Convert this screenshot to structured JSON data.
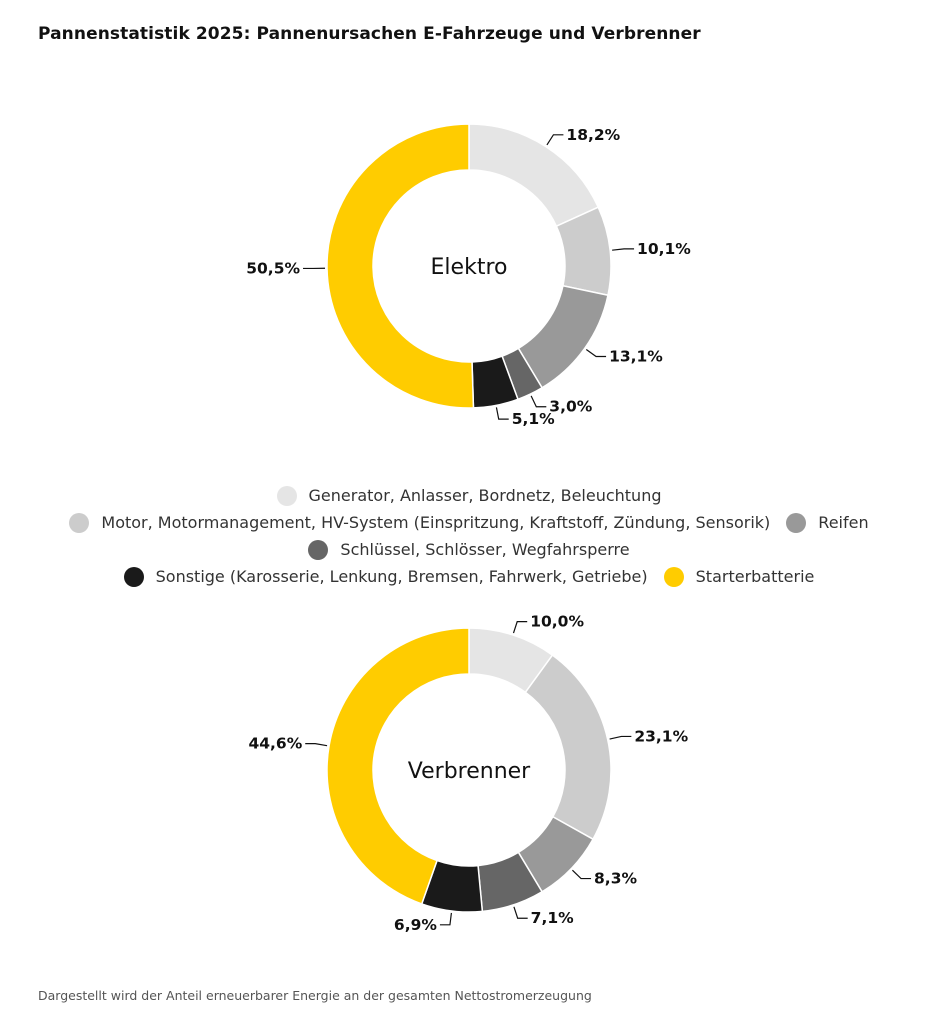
{
  "title": "Pannenstatistik 2025: Pannenursachen E-Fahrzeuge und Verbrenner",
  "footnote": "Dargestellt wird der Anteil erneuerbarer Energie an der gesamten Nettostromerzeugung",
  "legend": [
    {
      "label": "Generator, Anlasser, Bordnetz, Beleuchtung",
      "color": "#e5e5e5"
    },
    {
      "label": "Motor, Motormanagement, HV-System (Einspritzung, Kraftstoff, Zündung, Sensorik)",
      "color": "#cccccc"
    },
    {
      "label": "Reifen",
      "color": "#999999"
    },
    {
      "label": "Schlüssel, Schlösser, Wegfahrsperre",
      "color": "#666666"
    },
    {
      "label": "Sonstige (Karosserie, Lenkung, Bremsen, Fahrwerk, Getriebe)",
      "color": "#1a1a1a"
    },
    {
      "label": "Starterbatterie",
      "color": "#ffcc00"
    }
  ],
  "chart_data": [
    {
      "type": "pie",
      "title": "Elektro",
      "categories": [
        "Generator, Anlasser, Bordnetz, Beleuchtung",
        "Motor, Motormanagement, HV-System (Einspritzung, Kraftstoff, Zündung, Sensorik)",
        "Reifen",
        "Schlüssel, Schlösser, Wegfahrsperre",
        "Sonstige (Karosserie, Lenkung, Bremsen, Fahrwerk, Getriebe)",
        "Starterbatterie"
      ],
      "values": [
        18.2,
        10.1,
        13.1,
        3.0,
        5.1,
        50.5
      ],
      "value_labels": [
        "18,2%",
        "10,1%",
        "13,1%",
        "3,0%",
        "5,1%",
        "50,5%"
      ]
    },
    {
      "type": "pie",
      "title": "Verbrenner",
      "categories": [
        "Generator, Anlasser, Bordnetz, Beleuchtung",
        "Motor, Motormanagement, HV-System (Einspritzung, Kraftstoff, Zündung, Sensorik)",
        "Reifen",
        "Schlüssel, Schlösser, Wegfahrsperre",
        "Sonstige (Karosserie, Lenkung, Bremsen, Fahrwerk, Getriebe)",
        "Starterbatterie"
      ],
      "values": [
        10.0,
        23.1,
        8.3,
        7.1,
        6.9,
        44.6
      ],
      "value_labels": [
        "10,0%",
        "23,1%",
        "8,3%",
        "7,1%",
        "6,9%",
        "44,6%"
      ]
    }
  ]
}
